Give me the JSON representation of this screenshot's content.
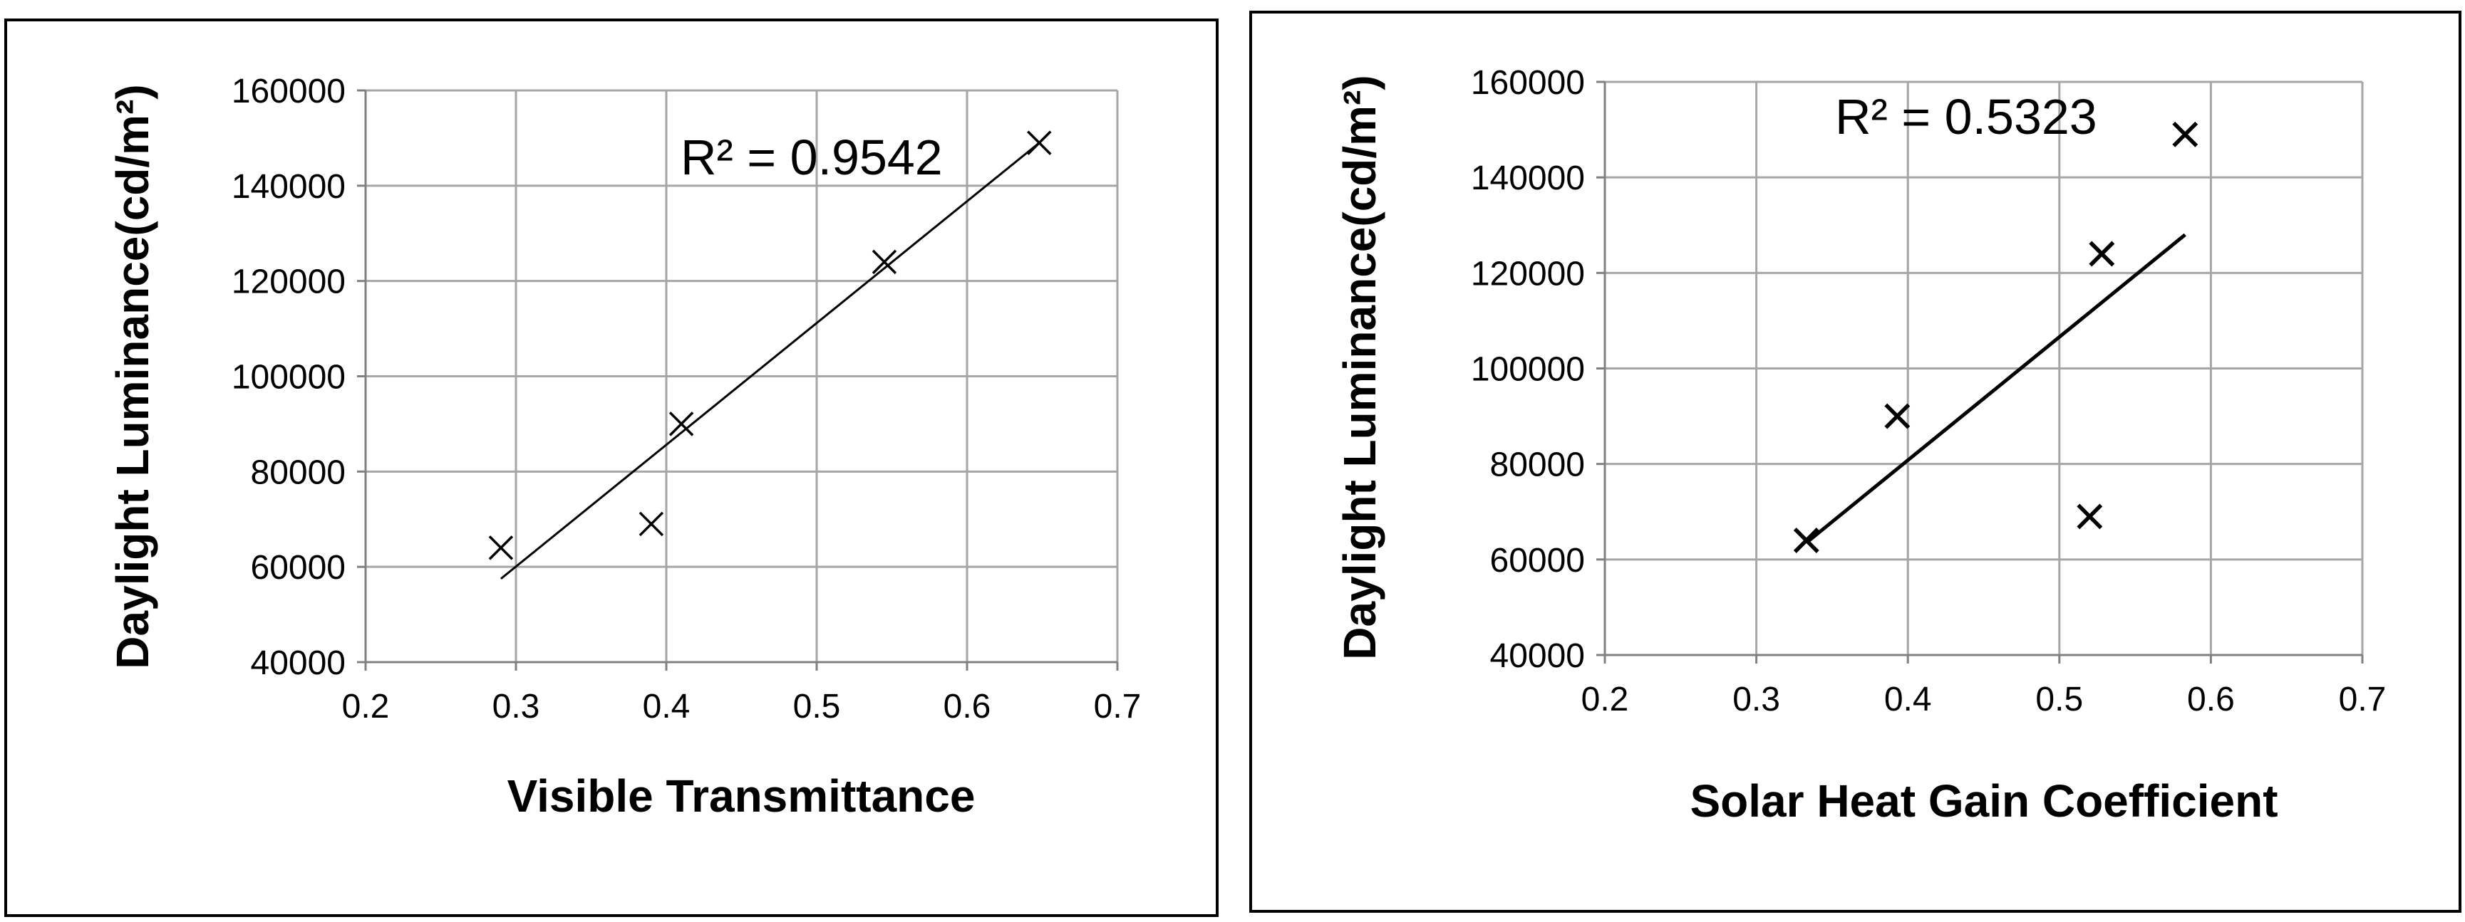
{
  "chart_data": [
    {
      "type": "scatter",
      "title": "",
      "xlabel": "Visible Transmittance",
      "ylabel": "Daylight Luminance(cd/m²)",
      "xlim": [
        0.2,
        0.7
      ],
      "ylim": [
        40000,
        160000
      ],
      "x_ticks": [
        "0.2",
        "0.3",
        "0.4",
        "0.5",
        "0.6",
        "0.7"
      ],
      "y_ticks": [
        "40000",
        "60000",
        "80000",
        "100000",
        "120000",
        "140000",
        "160000"
      ],
      "grid": true,
      "marker": "x",
      "series": [
        {
          "x": [
            0.29,
            0.39,
            0.41,
            0.545,
            0.648
          ],
          "y": [
            64000,
            69000,
            90000,
            124000,
            149000
          ]
        }
      ],
      "trendline": {
        "type": "linear",
        "x_range": [
          0.29,
          0.648
        ],
        "y_range": [
          57500,
          149000
        ],
        "label": "R² = 0.9542"
      }
    },
    {
      "type": "scatter",
      "title": "",
      "xlabel": "Solar Heat Gain Coefficient",
      "ylabel": "Daylight Luminance(cd/m²)",
      "xlim": [
        0.2,
        0.7
      ],
      "ylim": [
        40000,
        160000
      ],
      "x_ticks": [
        "0.2",
        "0.3",
        "0.4",
        "0.5",
        "0.6",
        "0.7"
      ],
      "y_ticks": [
        "40000",
        "60000",
        "80000",
        "100000",
        "120000",
        "140000",
        "160000"
      ],
      "grid": true,
      "marker": "x",
      "series": [
        {
          "x": [
            0.333,
            0.393,
            0.52,
            0.528,
            0.583
          ],
          "y": [
            64000,
            90000,
            69000,
            124000,
            149000
          ]
        }
      ],
      "trendline": {
        "type": "linear",
        "x_range": [
          0.333,
          0.583
        ],
        "y_range": [
          63500,
          128000
        ],
        "label": "R² = 0.5323"
      }
    }
  ]
}
